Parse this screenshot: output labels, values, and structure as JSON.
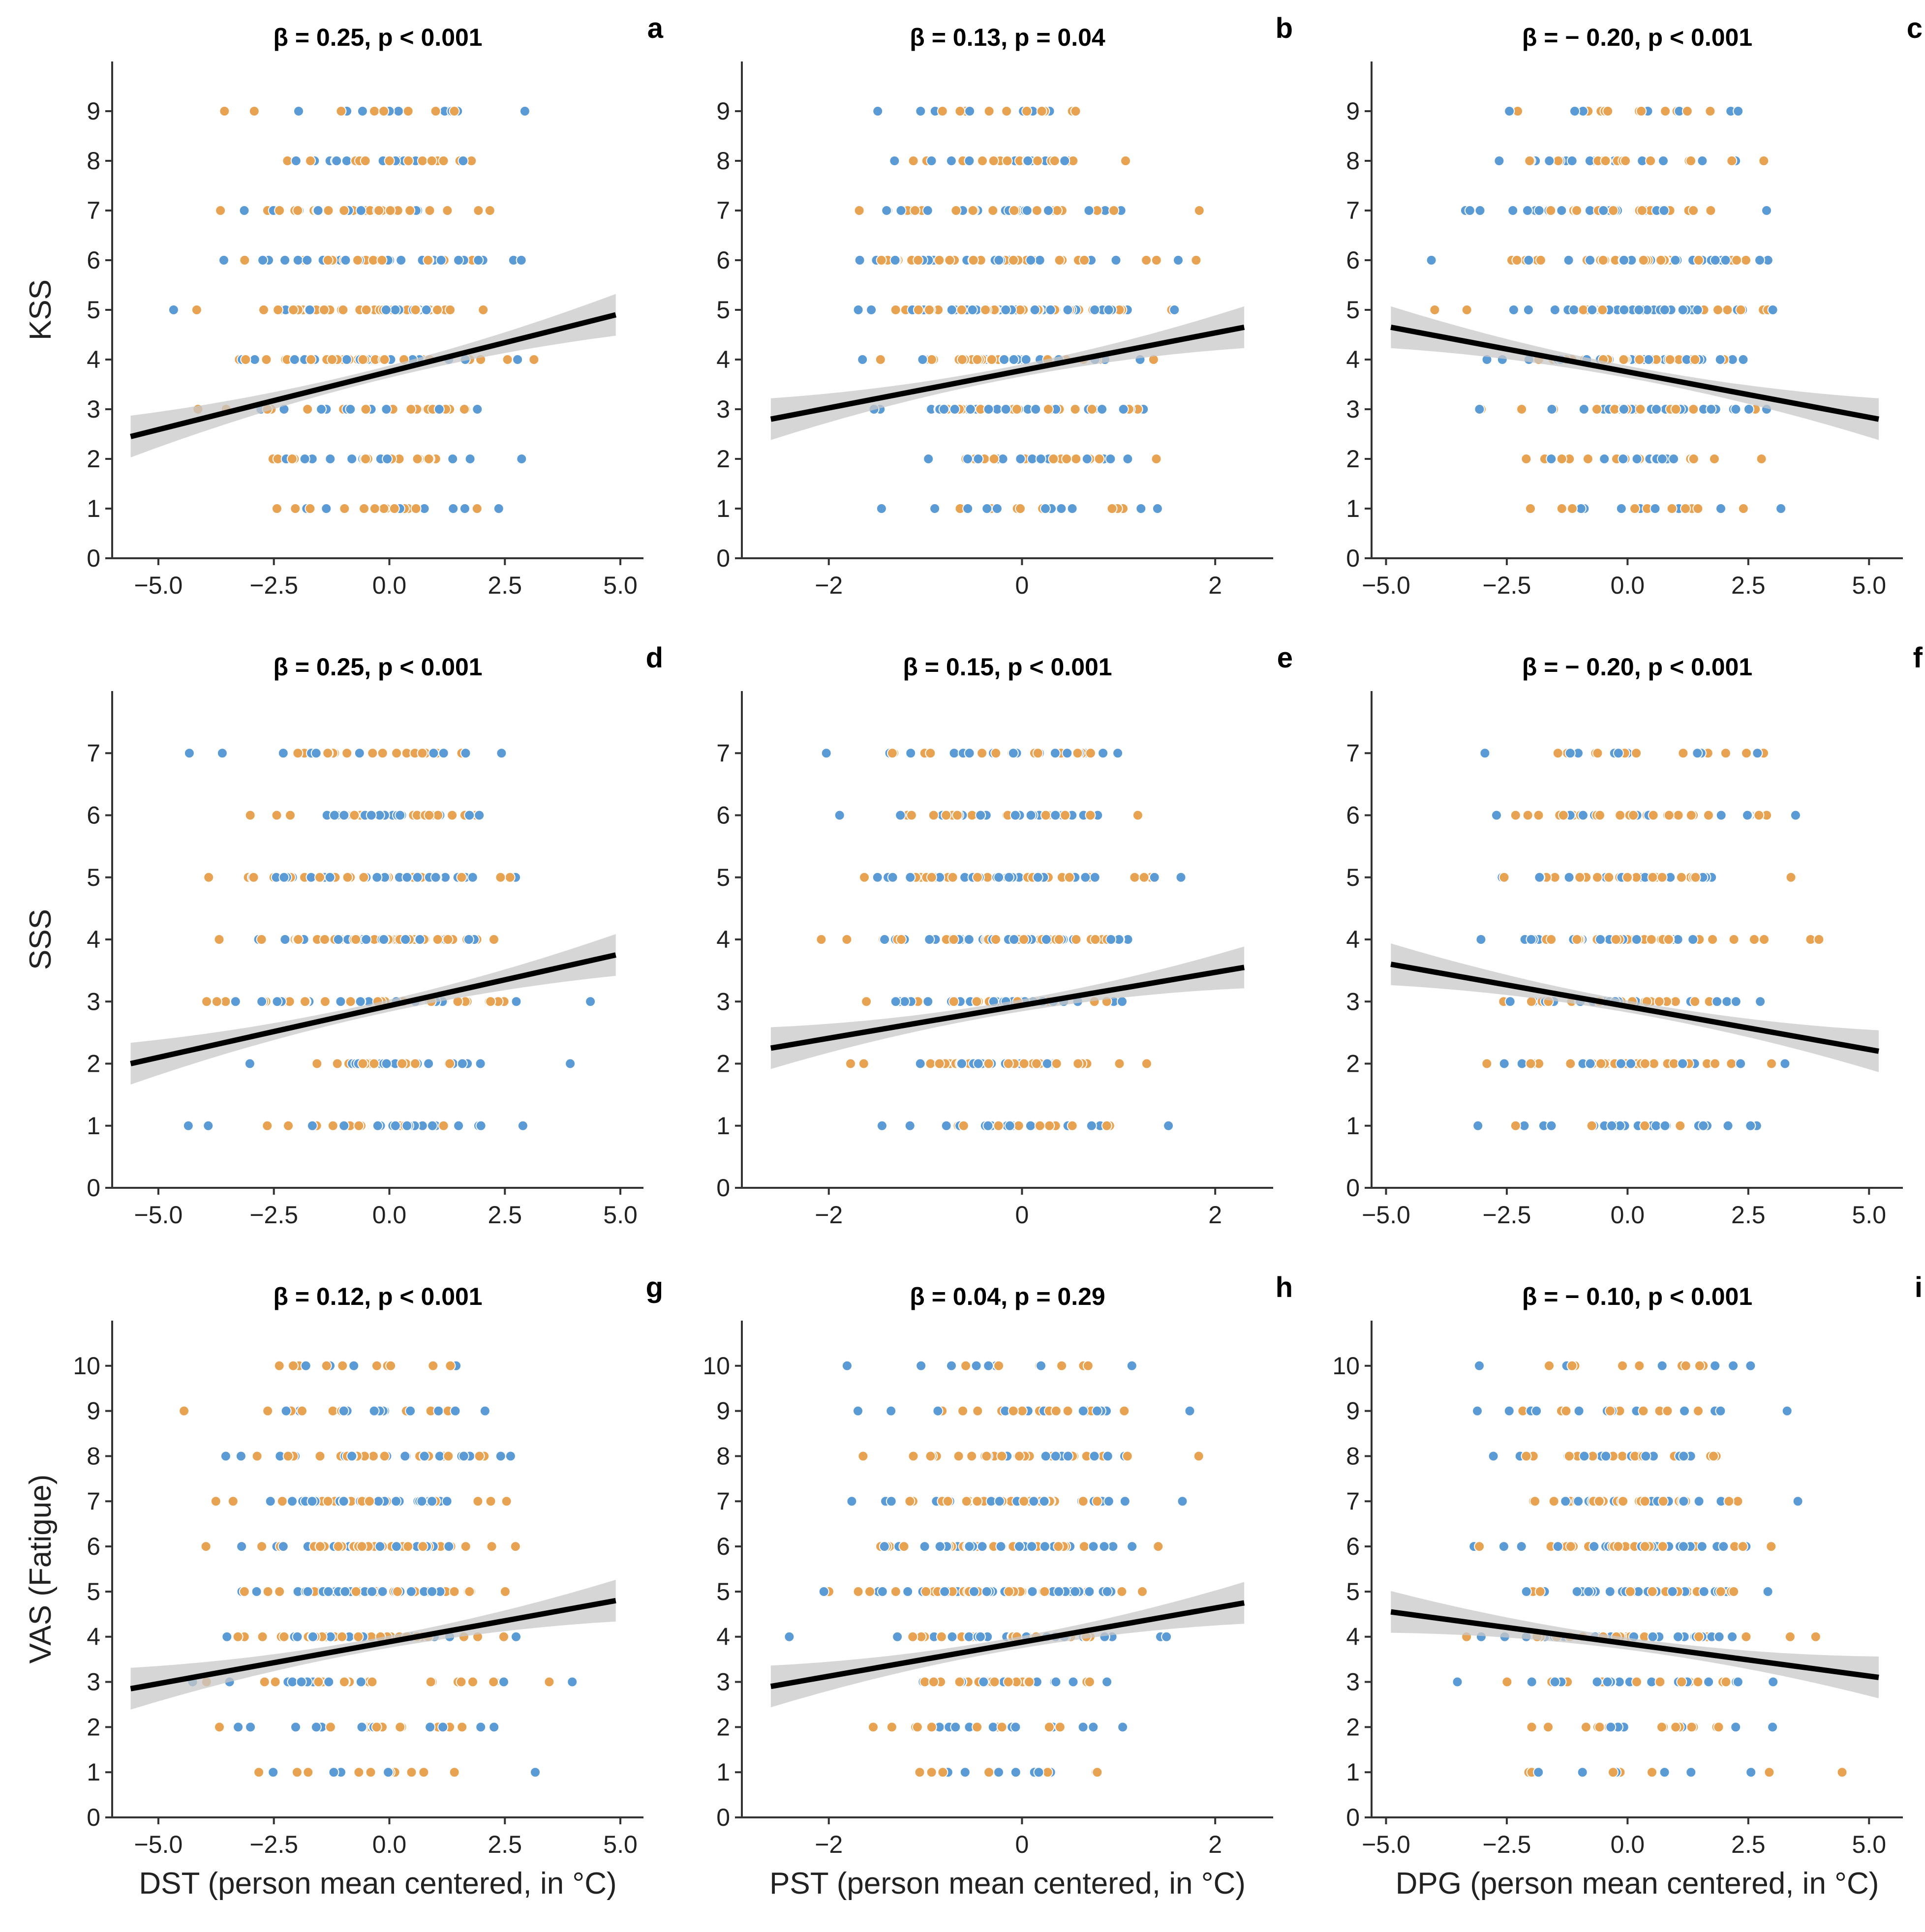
{
  "chart_data": [
    {
      "panel": "a",
      "type": "scatter",
      "title": "β = 0.25, p < 0.001",
      "xlabel": "",
      "ylabel": "KSS",
      "xlim": [
        -6.0,
        5.5
      ],
      "ylim": [
        0,
        10
      ],
      "xticks": [
        "−5.0",
        "−2.5",
        "0.0",
        "2.5",
        "5.0"
      ],
      "xtick_values": [
        -5,
        -2.5,
        0,
        2.5,
        5
      ],
      "yticks": [
        0,
        1,
        2,
        3,
        4,
        5,
        6,
        7,
        8,
        9
      ],
      "regression": {
        "x": [
          -5.6,
          4.9
        ],
        "y": [
          2.45,
          4.9
        ]
      },
      "points_note": "dense scatter of integer ratings; two groups (blue, orange)"
    },
    {
      "panel": "b",
      "type": "scatter",
      "title": "β = 0.13, p = 0.04",
      "xlabel": "",
      "ylabel": "",
      "xlim": [
        -2.9,
        2.6
      ],
      "ylim": [
        0,
        10
      ],
      "xticks": [
        "−2",
        "0",
        "2"
      ],
      "xtick_values": [
        -2,
        0,
        2
      ],
      "yticks": [
        0,
        1,
        2,
        3,
        4,
        5,
        6,
        7,
        8,
        9
      ],
      "regression": {
        "x": [
          -2.6,
          2.3
        ],
        "y": [
          2.8,
          4.65
        ]
      }
    },
    {
      "panel": "c",
      "type": "scatter",
      "title": "β = − 0.20, p < 0.001",
      "xlabel": "",
      "ylabel": "",
      "xlim": [
        -5.3,
        5.7
      ],
      "ylim": [
        0,
        10
      ],
      "xticks": [
        "−5.0",
        "−2.5",
        "0.0",
        "2.5",
        "5.0"
      ],
      "xtick_values": [
        -5,
        -2.5,
        0,
        2.5,
        5
      ],
      "yticks": [
        0,
        1,
        2,
        3,
        4,
        5,
        6,
        7,
        8,
        9
      ],
      "regression": {
        "x": [
          -4.9,
          5.2
        ],
        "y": [
          4.65,
          2.8
        ]
      }
    },
    {
      "panel": "d",
      "type": "scatter",
      "title": "β = 0.25, p < 0.001",
      "xlabel": "",
      "ylabel": "SSS",
      "xlim": [
        -6.0,
        5.5
      ],
      "ylim": [
        0,
        8
      ],
      "xticks": [
        "−5.0",
        "−2.5",
        "0.0",
        "2.5",
        "5.0"
      ],
      "xtick_values": [
        -5,
        -2.5,
        0,
        2.5,
        5
      ],
      "yticks": [
        0,
        1,
        2,
        3,
        4,
        5,
        6,
        7
      ],
      "regression": {
        "x": [
          -5.6,
          4.9
        ],
        "y": [
          2.0,
          3.75
        ]
      }
    },
    {
      "panel": "e",
      "type": "scatter",
      "title": "β = 0.15, p < 0.001",
      "xlabel": "",
      "ylabel": "",
      "xlim": [
        -2.9,
        2.6
      ],
      "ylim": [
        0,
        8
      ],
      "xticks": [
        "−2",
        "0",
        "2"
      ],
      "xtick_values": [
        -2,
        0,
        2
      ],
      "yticks": [
        0,
        1,
        2,
        3,
        4,
        5,
        6,
        7
      ],
      "regression": {
        "x": [
          -2.6,
          2.3
        ],
        "y": [
          2.25,
          3.55
        ]
      }
    },
    {
      "panel": "f",
      "type": "scatter",
      "title": "β = − 0.20, p < 0.001",
      "xlabel": "",
      "ylabel": "",
      "xlim": [
        -5.3,
        5.7
      ],
      "ylim": [
        0,
        8
      ],
      "xticks": [
        "−5.0",
        "−2.5",
        "0.0",
        "2.5",
        "5.0"
      ],
      "xtick_values": [
        -5,
        -2.5,
        0,
        2.5,
        5
      ],
      "yticks": [
        0,
        1,
        2,
        3,
        4,
        5,
        6,
        7
      ],
      "regression": {
        "x": [
          -4.9,
          5.2
        ],
        "y": [
          3.6,
          2.2
        ]
      }
    },
    {
      "panel": "g",
      "type": "scatter",
      "title": "β = 0.12, p < 0.001",
      "xlabel": "DST (person mean centered, in °C)",
      "ylabel": "VAS (Fatigue)",
      "xlim": [
        -6.0,
        5.5
      ],
      "ylim": [
        0,
        11
      ],
      "xticks": [
        "−5.0",
        "−2.5",
        "0.0",
        "2.5",
        "5.0"
      ],
      "xtick_values": [
        -5,
        -2.5,
        0,
        2.5,
        5
      ],
      "yticks": [
        0,
        1,
        2,
        3,
        4,
        5,
        6,
        7,
        8,
        9,
        10
      ],
      "regression": {
        "x": [
          -5.6,
          4.9
        ],
        "y": [
          2.85,
          4.8
        ]
      }
    },
    {
      "panel": "h",
      "type": "scatter",
      "title": "β = 0.04, p = 0.29",
      "xlabel": "PST (person mean centered, in °C)",
      "ylabel": "",
      "xlim": [
        -2.9,
        2.6
      ],
      "ylim": [
        0,
        11
      ],
      "xticks": [
        "−2",
        "0",
        "2"
      ],
      "xtick_values": [
        -2,
        0,
        2
      ],
      "yticks": [
        0,
        1,
        2,
        3,
        4,
        5,
        6,
        7,
        8,
        9,
        10
      ],
      "regression": {
        "x": [
          -2.6,
          2.3
        ],
        "y": [
          2.9,
          4.75
        ]
      }
    },
    {
      "panel": "i",
      "type": "scatter",
      "title": "β = − 0.10, p < 0.001",
      "xlabel": "DPG (person mean centered, in °C)",
      "ylabel": "",
      "xlim": [
        -5.3,
        5.7
      ],
      "ylim": [
        0,
        11
      ],
      "xticks": [
        "−5.0",
        "−2.5",
        "0.0",
        "2.5",
        "5.0"
      ],
      "xtick_values": [
        -5,
        -2.5,
        0,
        2.5,
        5
      ],
      "yticks": [
        0,
        1,
        2,
        3,
        4,
        5,
        6,
        7,
        8,
        9,
        10
      ],
      "regression": {
        "x": [
          -4.9,
          5.2
        ],
        "y": [
          4.55,
          3.1
        ]
      }
    }
  ],
  "colors": {
    "group_blue": "#5b9bd5",
    "group_orange": "#e8a352",
    "regression": "#000000",
    "ci_band": "#c8c8c8",
    "axis": "#333333"
  }
}
